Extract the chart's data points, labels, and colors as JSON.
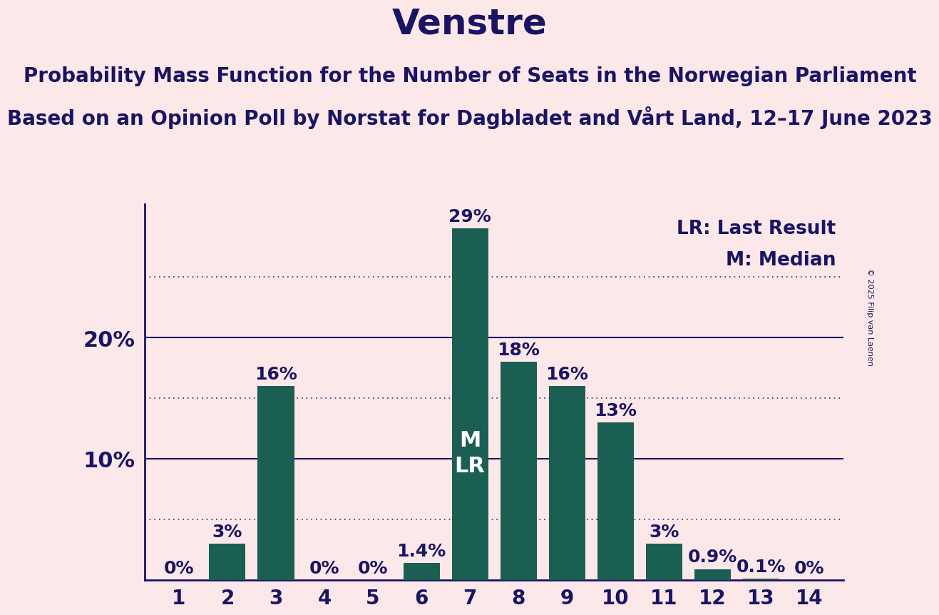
{
  "title": "Venstre",
  "subtitle1": "Probability Mass Function for the Number of Seats in the Norwegian Parliament",
  "subtitle2": "Based on an Opinion Poll by Norstat for Dagbladet and Vårt Land, 12–17 June 2023",
  "copyright": "© 2025 Filip van Laenen",
  "legend1": "LR: Last Result",
  "legend2": "M: Median",
  "categories": [
    1,
    2,
    3,
    4,
    5,
    6,
    7,
    8,
    9,
    10,
    11,
    12,
    13,
    14
  ],
  "values": [
    0.0,
    3.0,
    16.0,
    0.0,
    0.0,
    1.4,
    29.0,
    18.0,
    16.0,
    13.0,
    3.0,
    0.9,
    0.1,
    0.0
  ],
  "bar_labels": [
    "0%",
    "3%",
    "16%",
    "0%",
    "0%",
    "1.4%",
    "29%",
    "18%",
    "16%",
    "13%",
    "3%",
    "0.9%",
    "0.1%",
    "0%"
  ],
  "bar_color": "#1b5e52",
  "median_bar": 7,
  "lr_bar": 7,
  "background_color": "#fce8e8",
  "text_color": "#1a1464",
  "title_fontsize": 36,
  "subtitle_fontsize": 20,
  "label_fontsize": 18,
  "tick_fontsize": 20,
  "ylabel_fontsize": 22,
  "mlr_fontsize": 22,
  "ylim": [
    0,
    31
  ],
  "yticks_solid": [
    10,
    20
  ],
  "yticks_dotted": [
    5,
    15,
    25
  ]
}
